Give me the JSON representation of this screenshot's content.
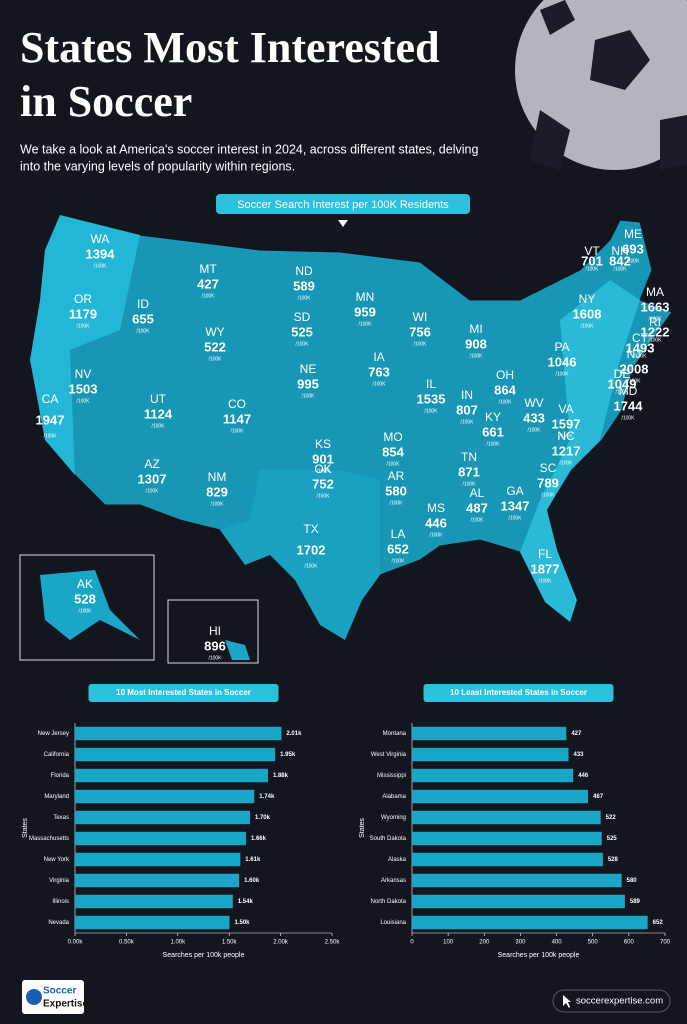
{
  "header": {
    "title_line1": "States Most Interested",
    "title_line2": "in Soccer",
    "subtitle_line1": "We take a look at America's soccer interest in 2024, across different states, delving",
    "subtitle_line2": "into the varying levels of popularity within regions."
  },
  "map": {
    "title": "Soccer Search Interest per 100K Residents",
    "unit": "/100K",
    "states": [
      {
        "abbr": "WA",
        "value": 1394
      },
      {
        "abbr": "OR",
        "value": 1179
      },
      {
        "abbr": "CA",
        "value": 1947
      },
      {
        "abbr": "ID",
        "value": 655
      },
      {
        "abbr": "NV",
        "value": 1503
      },
      {
        "abbr": "MT",
        "value": 427
      },
      {
        "abbr": "WY",
        "value": 522
      },
      {
        "abbr": "UT",
        "value": 1124
      },
      {
        "abbr": "AZ",
        "value": 1307
      },
      {
        "abbr": "CO",
        "value": 1147
      },
      {
        "abbr": "NM",
        "value": 829
      },
      {
        "abbr": "ND",
        "value": 589
      },
      {
        "abbr": "SD",
        "value": 525
      },
      {
        "abbr": "NE",
        "value": 995
      },
      {
        "abbr": "KS",
        "value": 901
      },
      {
        "abbr": "OK",
        "value": 752
      },
      {
        "abbr": "TX",
        "value": 1702
      },
      {
        "abbr": "MN",
        "value": 959
      },
      {
        "abbr": "IA",
        "value": 763
      },
      {
        "abbr": "MO",
        "value": 854
      },
      {
        "abbr": "AR",
        "value": 580
      },
      {
        "abbr": "LA",
        "value": 652
      },
      {
        "abbr": "WI",
        "value": 756
      },
      {
        "abbr": "IL",
        "value": 1535
      },
      {
        "abbr": "MI",
        "value": 908
      },
      {
        "abbr": "IN",
        "value": 807
      },
      {
        "abbr": "OH",
        "value": 864
      },
      {
        "abbr": "KY",
        "value": 661
      },
      {
        "abbr": "TN",
        "value": 871
      },
      {
        "abbr": "MS",
        "value": 446
      },
      {
        "abbr": "AL",
        "value": 487
      },
      {
        "abbr": "GA",
        "value": 1347
      },
      {
        "abbr": "FL",
        "value": 1877
      },
      {
        "abbr": "SC",
        "value": 789
      },
      {
        "abbr": "NC",
        "value": 1217
      },
      {
        "abbr": "WV",
        "value": 433
      },
      {
        "abbr": "VA",
        "value": 1597
      },
      {
        "abbr": "PA",
        "value": 1046
      },
      {
        "abbr": "NY",
        "value": 1608
      },
      {
        "abbr": "VT",
        "value": 701
      },
      {
        "abbr": "NH",
        "value": 842
      },
      {
        "abbr": "ME",
        "value": 693
      },
      {
        "abbr": "MA",
        "value": 1663
      },
      {
        "abbr": "RI",
        "value": 1222
      },
      {
        "abbr": "CT",
        "value": 1493
      },
      {
        "abbr": "NJ",
        "value": 2008
      },
      {
        "abbr": "DE",
        "value": 1049
      },
      {
        "abbr": "MD",
        "value": 1744
      },
      {
        "abbr": "AK",
        "value": 528
      },
      {
        "abbr": "HI",
        "value": 896
      }
    ]
  },
  "chart_data": [
    {
      "type": "bar",
      "orientation": "horizontal",
      "title": "10 Most Interested States in Soccer",
      "x_label": "Searches per 100k people",
      "y_label": "States",
      "color": "#1aa7c7",
      "categories": [
        "New Jersey",
        "California",
        "Florida",
        "Maryland",
        "Texas",
        "Massachusetts",
        "New York",
        "Virginia",
        "Illinois",
        "Nevada"
      ],
      "values": [
        2008,
        1947,
        1877,
        1744,
        1702,
        1663,
        1608,
        1597,
        1535,
        1503
      ],
      "value_labels": [
        "2.01k",
        "1.95k",
        "1.88k",
        "1.74k",
        "1.70k",
        "1.66k",
        "1.61k",
        "1.60k",
        "1.54k",
        "1.50k"
      ],
      "xlim": [
        0,
        2500
      ],
      "xticks": [
        {
          "value": 0,
          "label": "0.00k"
        },
        {
          "value": 500,
          "label": "0.50k"
        },
        {
          "value": 1000,
          "label": "1.00k"
        },
        {
          "value": 1500,
          "label": "1.50k"
        },
        {
          "value": 2000,
          "label": "2.00k"
        },
        {
          "value": 2500,
          "label": "2.50k"
        }
      ]
    },
    {
      "type": "bar",
      "orientation": "horizontal",
      "title": "10 Least Interested States in Soccer",
      "x_label": "Searches per 100k people",
      "y_label": "States",
      "color": "#1aa7c7",
      "categories": [
        "Montana",
        "West Virginia",
        "Mississippi",
        "Alabama",
        "Wyoming",
        "South Dakota",
        "Alaska",
        "Arkansas",
        "North Dakota",
        "Louisiana"
      ],
      "values": [
        427,
        433,
        446,
        487,
        522,
        525,
        528,
        580,
        589,
        652
      ],
      "xlim": [
        0,
        700
      ],
      "xticks": [
        0,
        100,
        200,
        300,
        400,
        500,
        600,
        700
      ]
    }
  ],
  "footer": {
    "logo_line1": "Soccer",
    "logo_line2": "Expertise",
    "website": "soccerexpertise.com"
  }
}
